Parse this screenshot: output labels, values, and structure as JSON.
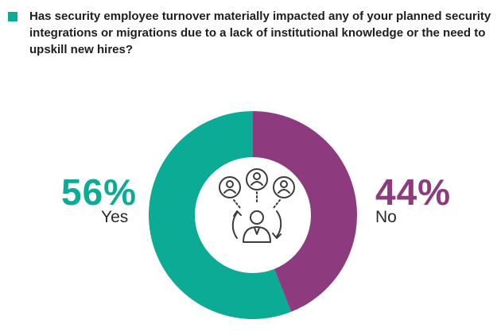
{
  "question": "Has security employee turnover materially impacted any of your planned security integrations or migrations due to a lack of institutional knowledge or the need to upskill new hires?",
  "colors": {
    "yes": "#0bab96",
    "no": "#8e3a7e",
    "bullet": "#0bab96",
    "icon": "#3c3c3c"
  },
  "icons": {
    "center": "people-rotation-icon"
  },
  "chart_data": {
    "type": "pie",
    "style": "donut",
    "categories": [
      "Yes",
      "No"
    ],
    "values": [
      56,
      44
    ],
    "labels": [
      "56%",
      "44%"
    ],
    "title": "",
    "legend": "none"
  }
}
